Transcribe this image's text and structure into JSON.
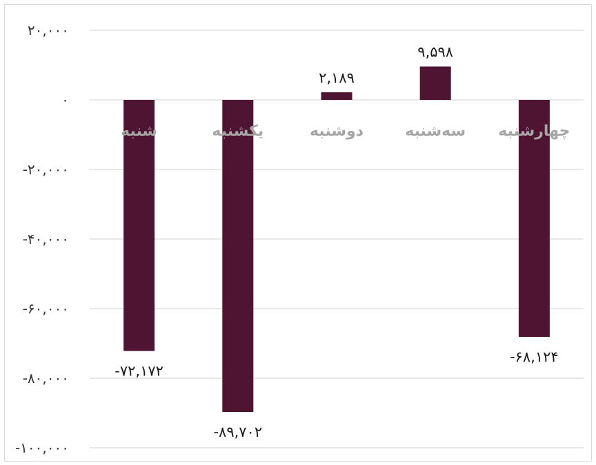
{
  "chart_data": {
    "type": "bar",
    "categories": [
      "شنبه",
      "یکشنبه",
      "دوشنبه",
      "سه‌شنبه",
      "چهارشنبه"
    ],
    "values": [
      -72172,
      -89702,
      2189,
      9598,
      -68124
    ],
    "data_labels": [
      "-۷۲,۱۷۲",
      "-۸۹,۷۰۲",
      "۲,۱۸۹",
      "۹,۵۹۸",
      "-۶۸,۱۲۴"
    ],
    "y_ticks": [
      20000,
      0,
      -20000,
      -40000,
      -60000,
      -80000,
      -100000
    ],
    "y_tick_labels": [
      "۲۰,۰۰۰",
      "۰",
      "-۲۰,۰۰۰",
      "-۴۰,۰۰۰",
      "-۶۰,۰۰۰",
      "-۸۰,۰۰۰",
      "-۱۰۰,۰۰۰"
    ],
    "ylim": [
      -100000,
      20000
    ],
    "grid": true,
    "legend": "none",
    "title": "",
    "xlabel": "",
    "ylabel": ""
  },
  "colors": {
    "bar": "#4e1432",
    "grid": "#d9d9d9",
    "category_label": "#a6a6a6"
  }
}
